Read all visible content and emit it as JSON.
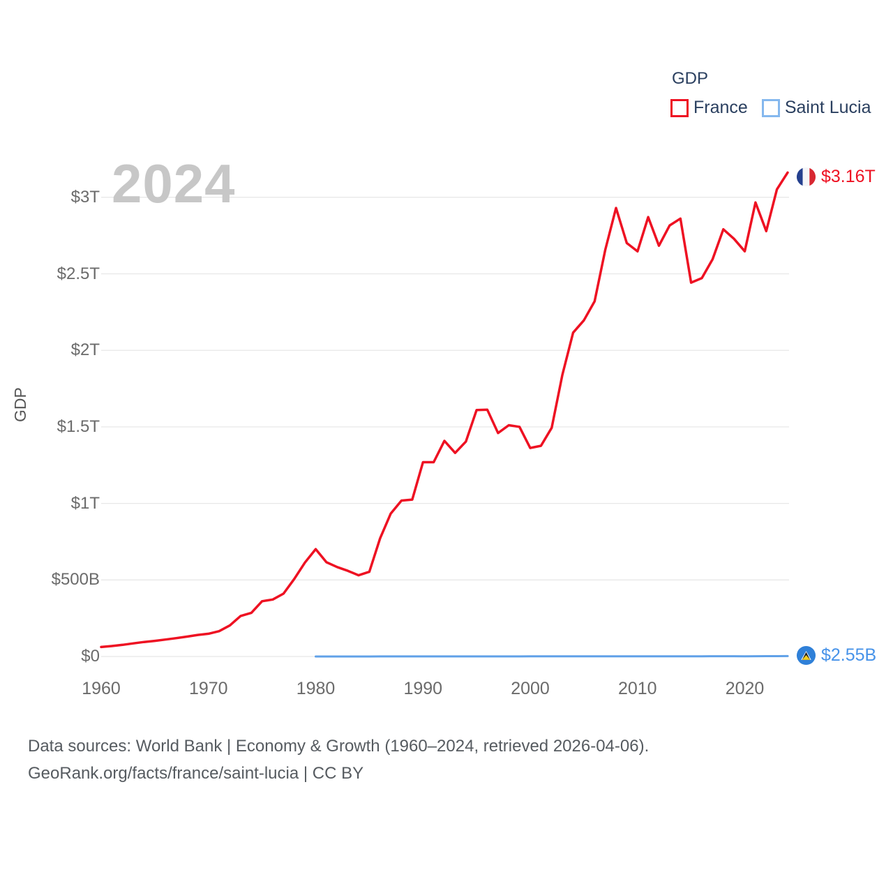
{
  "legend": {
    "title": "GDP",
    "items": [
      {
        "label": "France",
        "swatch_color": "#ee1122"
      },
      {
        "label": "Saint Lucia",
        "swatch_color": "#85b8ee"
      }
    ]
  },
  "watermark": "2024",
  "axis": {
    "y_title": "GDP",
    "y_ticks": [
      {
        "label": "$0",
        "value": 0
      },
      {
        "label": "$500B",
        "value": 500
      },
      {
        "label": "$1T",
        "value": 1000
      },
      {
        "label": "$1.5T",
        "value": 1500
      },
      {
        "label": "$2T",
        "value": 2000
      },
      {
        "label": "$2.5T",
        "value": 2500
      },
      {
        "label": "$3T",
        "value": 3000
      }
    ],
    "x_ticks": [
      {
        "label": "1960",
        "year": 1960
      },
      {
        "label": "1970",
        "year": 1970
      },
      {
        "label": "1980",
        "year": 1980
      },
      {
        "label": "1990",
        "year": 1990
      },
      {
        "label": "2000",
        "year": 2000
      },
      {
        "label": "2010",
        "year": 2010
      },
      {
        "label": "2020",
        "year": 2020
      }
    ]
  },
  "end_labels": {
    "france": {
      "text": "$3.16T",
      "color": "#ee1122"
    },
    "saint_lucia": {
      "text": "$2.55B",
      "color": "#4793e9"
    }
  },
  "footer": {
    "line1": "Data sources: World Bank | Economy & Growth (1960–2024, retrieved 2026-04-06).",
    "line2": "GeoRank.org/facts/france/saint-lucia | CC BY"
  },
  "colors": {
    "france_line": "#ee1122",
    "saint_lucia_line": "#60a1e8",
    "gridline": "#e8e8e8",
    "watermark": "#c7c7c7",
    "legend_text": "#2a3f5f",
    "tick_text": "#6b6b6b"
  },
  "chart_data": {
    "type": "line",
    "title": "GDP",
    "xlabel": "",
    "ylabel": "GDP",
    "unit": "USD (current), billions",
    "x_range": [
      1960,
      2024
    ],
    "ylim_billions": [
      0,
      3250
    ],
    "grid": "horizontal",
    "legend_position": "top-right",
    "series": [
      {
        "name": "France",
        "color": "#ee1122",
        "end_label": "$3.16T",
        "year_start": 1960,
        "values_billions_usd": [
          62.2,
          68.3,
          76.3,
          85.6,
          94.9,
          102.2,
          110.6,
          119.9,
          129.8,
          140.7,
          148.5,
          165.6,
          203.5,
          264.6,
          285.5,
          360.8,
          372.3,
          410.8,
          506.7,
          614.0,
          701.3,
          615.6,
          584.4,
          559.8,
          530.6,
          553.1,
          771.7,
          934.0,
          1018.5,
          1025.0,
          1269.2,
          1269.3,
          1408.7,
          1330.0,
          1404.2,
          1609.9,
          1612.2,
          1460.0,
          1510.8,
          1500.3,
          1362.2,
          1376.5,
          1494.3,
          1840.5,
          2115.7,
          2196.1,
          2320.5,
          2657.2,
          2930.3,
          2700.9,
          2646.8,
          2870.4,
          2683.8,
          2816.1,
          2861.2,
          2442.5,
          2472.3,
          2595.2,
          2790.9,
          2728.9,
          2647.4,
          2966.4,
          2779.1,
          3051.8,
          3162.0
        ]
      },
      {
        "name": "Saint Lucia",
        "color": "#60a1e8",
        "end_label": "$2.55B",
        "year_start": 1980,
        "values_billions_usd": [
          0.13,
          0.14,
          0.15,
          0.17,
          0.18,
          0.2,
          0.23,
          0.26,
          0.29,
          0.32,
          0.4,
          0.43,
          0.47,
          0.49,
          0.51,
          0.55,
          0.57,
          0.59,
          0.63,
          0.68,
          0.72,
          0.69,
          0.7,
          0.76,
          0.82,
          0.9,
          0.98,
          1.06,
          1.09,
          1.06,
          1.29,
          1.33,
          1.36,
          1.38,
          1.43,
          1.52,
          1.57,
          1.66,
          1.79,
          1.92,
          1.43,
          1.68,
          2.1,
          2.38,
          2.55
        ]
      }
    ]
  }
}
